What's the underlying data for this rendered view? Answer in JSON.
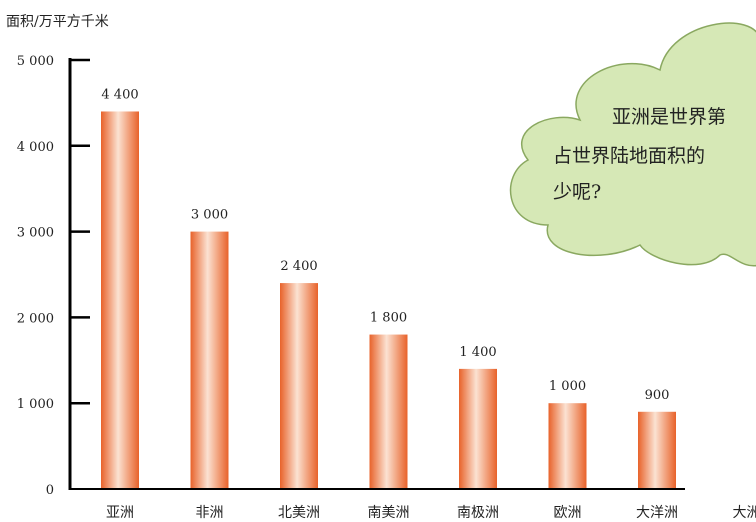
{
  "chart_data": {
    "type": "bar",
    "ylabel": "面积/万平方千米",
    "categories": [
      "亚洲",
      "非洲",
      "北美洲",
      "南美洲",
      "南极洲",
      "欧洲",
      "大洋洲",
      "大洲"
    ],
    "values": [
      4400,
      3000,
      2400,
      1800,
      1400,
      1000,
      900,
      null
    ],
    "value_labels": [
      "4 400",
      "3 000",
      "2 400",
      "1 800",
      "1 400",
      "1 000",
      "900",
      ""
    ],
    "ylim": [
      0,
      5000
    ],
    "yticks": [
      0,
      1000,
      2000,
      3000,
      4000,
      5000
    ],
    "ytick_labels": [
      "0",
      "1 000",
      "2 000",
      "3 000",
      "4 000",
      "5 000"
    ],
    "grid": false,
    "bar_color": "#f07a40",
    "bar_highlight": "#fbe2d2"
  },
  "bubble": {
    "lines": [
      "亚洲是世界第",
      "占世界陆地面积的",
      "少呢?"
    ],
    "fill": "#d6e8b6",
    "stroke": "#8aa860"
  }
}
